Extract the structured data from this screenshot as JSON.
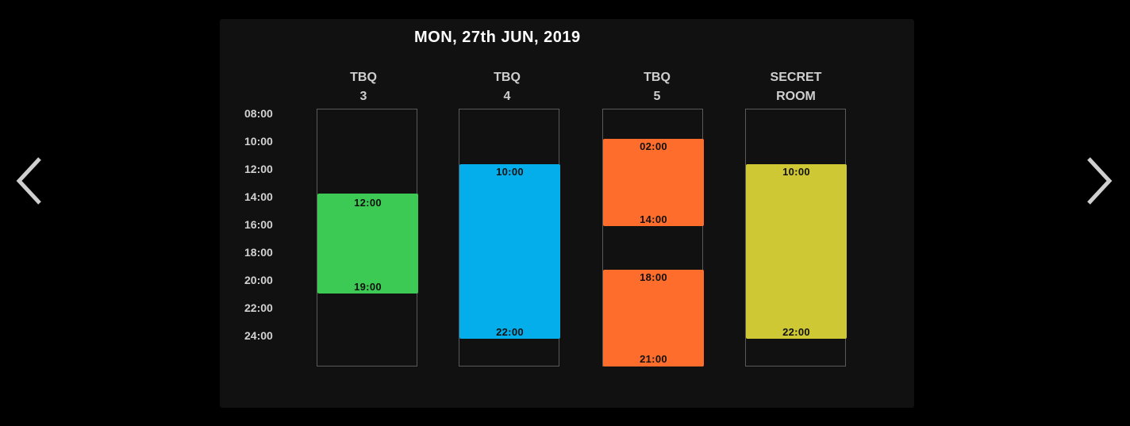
{
  "header": {
    "date": "MON, 27th JUN, 2019"
  },
  "navigation": {
    "prev_icon": "chevron-left-icon",
    "next_icon": "chevron-right-icon"
  },
  "time_axis": [
    "08:00",
    "10:00",
    "12:00",
    "14:00",
    "16:00",
    "18:00",
    "20:00",
    "22:00",
    "24:00"
  ],
  "rooms": [
    {
      "line1": "TBQ",
      "line2": "3",
      "bookings": [
        {
          "start": "12:00",
          "end": "19:00",
          "color": "#3cc954"
        }
      ]
    },
    {
      "line1": "TBQ",
      "line2": "4",
      "bookings": [
        {
          "start": "10:00",
          "end": "22:00",
          "color": "#03aeea"
        }
      ]
    },
    {
      "line1": "TBQ",
      "line2": "5",
      "bookings": [
        {
          "start": "02:00",
          "end": "14:00",
          "color": "#ff6d2c"
        },
        {
          "start": "18:00",
          "end": "21:00",
          "color": "#ff6d2c"
        }
      ]
    },
    {
      "line1": "SECRET",
      "line2": "ROOM",
      "bookings": [
        {
          "start": "10:00",
          "end": "22:00",
          "color": "#cdc834"
        }
      ]
    }
  ]
}
